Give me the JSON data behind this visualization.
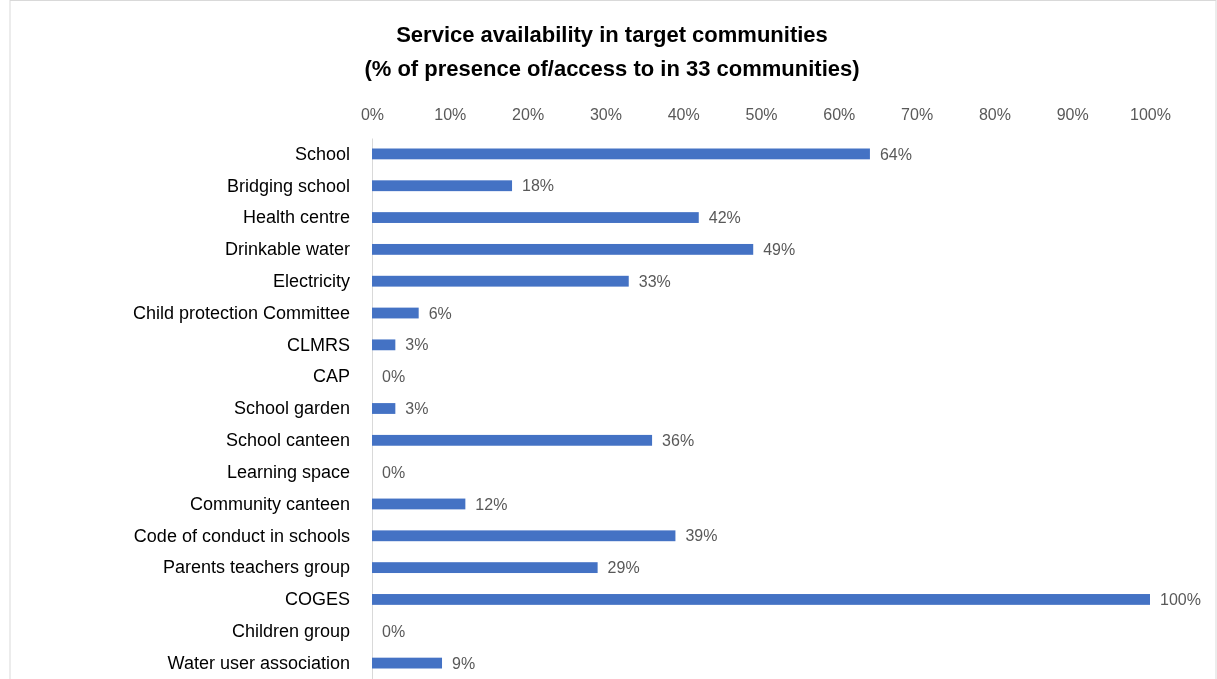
{
  "chart_data": {
    "type": "bar",
    "orientation": "horizontal",
    "title": "Service availability in target communities\n(% of presence of/access to in 33 communities)",
    "categories": [
      "School",
      "Bridging school",
      "Health centre",
      "Drinkable water",
      "Electricity",
      "Child protection Committee",
      "CLMRS",
      "CAP",
      "School garden",
      "School canteen",
      "Learning space",
      "Community canteen",
      "Code of conduct in schools",
      "Parents teachers group",
      "COGES",
      "Children group",
      "Water user association"
    ],
    "values": [
      64,
      18,
      42,
      49,
      33,
      6,
      3,
      0,
      3,
      36,
      0,
      12,
      39,
      29,
      100,
      0,
      9
    ],
    "value_labels": [
      "64%",
      "18%",
      "42%",
      "49%",
      "33%",
      "6%",
      "3%",
      "0%",
      "3%",
      "36%",
      "0%",
      "12%",
      "39%",
      "29%",
      "100%",
      "0%",
      "9%"
    ],
    "color": "#4472c4",
    "xlim": [
      0,
      100
    ],
    "xticks": [
      {
        "value": 0,
        "label": "0%"
      },
      {
        "value": 10,
        "label": "10%"
      },
      {
        "value": 20,
        "label": "20%"
      },
      {
        "value": 30,
        "label": "30%"
      },
      {
        "value": 40,
        "label": "40%"
      },
      {
        "value": 50,
        "label": "50%"
      },
      {
        "value": 60,
        "label": "60%"
      },
      {
        "value": 70,
        "label": "70%"
      },
      {
        "value": 80,
        "label": "80%"
      },
      {
        "value": 90,
        "label": "90%"
      },
      {
        "value": 100,
        "label": "100%"
      }
    ],
    "grid": false
  }
}
